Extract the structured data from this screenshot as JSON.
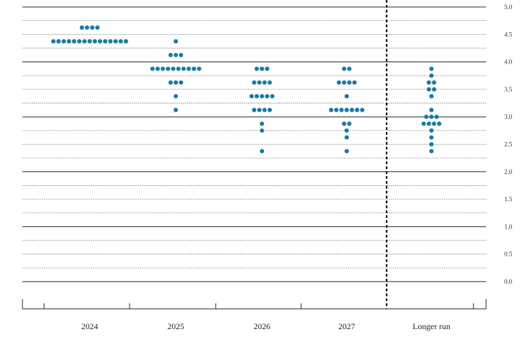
{
  "chart_data": {
    "type": "scatter",
    "title": "",
    "xlabel": "",
    "ylabel": "",
    "ylim": [
      0,
      5
    ],
    "grid": true,
    "y_axis_position": "right",
    "dot_color": "#1a7aa8",
    "y_ticks": [
      "0.0",
      "0.5",
      "1.0",
      "1.5",
      "2.0",
      "2.5",
      "3.0",
      "3.5",
      "4.0",
      "4.5",
      "5.0"
    ],
    "categories": [
      "2024",
      "2025",
      "2026",
      "2027",
      "Longer run"
    ],
    "projections": [
      {
        "category": "2024",
        "points": [
          {
            "rate": 4.625,
            "count": 4
          },
          {
            "rate": 4.375,
            "count": 15
          }
        ]
      },
      {
        "category": "2025",
        "points": [
          {
            "rate": 4.375,
            "count": 1
          },
          {
            "rate": 4.125,
            "count": 3
          },
          {
            "rate": 3.875,
            "count": 10
          },
          {
            "rate": 3.625,
            "count": 3
          },
          {
            "rate": 3.375,
            "count": 1
          },
          {
            "rate": 3.125,
            "count": 1
          }
        ]
      },
      {
        "category": "2026",
        "points": [
          {
            "rate": 3.875,
            "count": 3
          },
          {
            "rate": 3.625,
            "count": 4
          },
          {
            "rate": 3.375,
            "count": 5
          },
          {
            "rate": 3.125,
            "count": 4
          },
          {
            "rate": 2.875,
            "count": 1
          },
          {
            "rate": 2.75,
            "count": 1
          },
          {
            "rate": 2.375,
            "count": 1
          }
        ]
      },
      {
        "category": "2027",
        "points": [
          {
            "rate": 3.875,
            "count": 2
          },
          {
            "rate": 3.625,
            "count": 4
          },
          {
            "rate": 3.375,
            "count": 1
          },
          {
            "rate": 3.125,
            "count": 7
          },
          {
            "rate": 2.875,
            "count": 2
          },
          {
            "rate": 2.75,
            "count": 1
          },
          {
            "rate": 2.625,
            "count": 1
          },
          {
            "rate": 2.375,
            "count": 1
          }
        ]
      },
      {
        "category": "Longer run",
        "points": [
          {
            "rate": 3.875,
            "count": 1
          },
          {
            "rate": 3.75,
            "count": 1
          },
          {
            "rate": 3.625,
            "count": 2
          },
          {
            "rate": 3.5,
            "count": 2
          },
          {
            "rate": 3.375,
            "count": 1
          },
          {
            "rate": 3.125,
            "count": 1
          },
          {
            "rate": 3.0,
            "count": 3
          },
          {
            "rate": 2.875,
            "count": 4
          },
          {
            "rate": 2.75,
            "count": 1
          },
          {
            "rate": 2.625,
            "count": 1
          },
          {
            "rate": 2.5,
            "count": 1
          },
          {
            "rate": 2.375,
            "count": 1
          }
        ]
      }
    ]
  }
}
